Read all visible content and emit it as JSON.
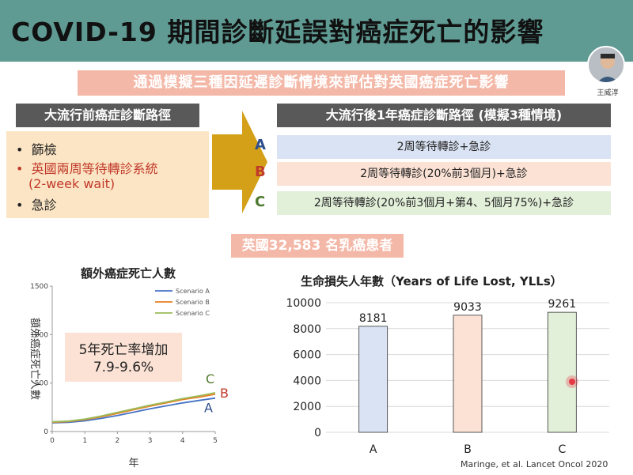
{
  "slide": {
    "title": "COVID-19 期間診斷延誤對癌症死亡的影響",
    "subtitle": "通過模擬三種因延遲診斷情境來評估對英國癌症死亡影響",
    "presenter_name": "王威淳",
    "citation": "Maringe, et al. Lancet Oncol 2020",
    "patients_label": "英國32,583 名乳癌患者"
  },
  "pre_pandemic": {
    "header": "大流行前癌症診斷路徑",
    "items": [
      {
        "bullet": "•",
        "text": "篩檢"
      },
      {
        "bullet": "•",
        "text": "英國兩周等待轉診系統"
      },
      {
        "bullet": "",
        "text": "(2-week wait)"
      },
      {
        "bullet": "•",
        "text": "急診"
      }
    ]
  },
  "post_pandemic": {
    "header": "大流行後1年癌症診斷路徑 (模擬3種情境)",
    "scenarios": [
      {
        "letter": "A",
        "text": "2周等待轉診+急診"
      },
      {
        "letter": "B",
        "text": "2周等待轉診(20%前3個月)+急診"
      },
      {
        "letter": "C",
        "text": "2周等待轉診(20%前3個月+第4、5個月75%)+急診"
      }
    ]
  },
  "colors": {
    "title_bar": "#5f9a93",
    "subtitle_bg": "#f4b8a8",
    "header_bg": "#595959",
    "pre_box": "#fce5c4",
    "arrow": "#d4a017",
    "scenario_A": "#dae3f3",
    "scenario_B": "#fbe2d5",
    "scenario_C": "#e2efd9",
    "letter_A": "#2e4f8c",
    "letter_B": "#c0392b",
    "letter_C": "#4e7a2c",
    "pointer": "#e63946"
  },
  "line_chart": {
    "heading": "額外癌症死亡人數",
    "mortality_label_1": "5年死亡率增加",
    "mortality_label_2": "7.9-9.6%",
    "chart_data": {
      "type": "line",
      "xlabel": "年",
      "ylabel": "額外癌症死亡人數",
      "xlim": [
        0,
        5
      ],
      "ylim": [
        0,
        1500
      ],
      "x_ticks": [
        "0",
        "1",
        "2",
        "3",
        "4",
        "5"
      ],
      "y_ticks": [
        "0",
        "500",
        "1000",
        "1500"
      ],
      "x": [
        0,
        0.5,
        1,
        1.5,
        2,
        2.5,
        3,
        3.5,
        4,
        4.5,
        5
      ],
      "series": [
        {
          "name": "Scenario A",
          "end_label": "A",
          "color": "#4472c4",
          "values": [
            90,
            95,
            110,
            135,
            165,
            200,
            235,
            265,
            295,
            320,
            345
          ]
        },
        {
          "name": "Scenario B",
          "end_label": "B",
          "color": "#e67e22",
          "values": [
            95,
            103,
            122,
            152,
            187,
            225,
            262,
            295,
            330,
            355,
            385
          ]
        },
        {
          "name": "Scenario C",
          "end_label": "C",
          "color": "#9bbb59",
          "values": [
            100,
            108,
            128,
            160,
            197,
            235,
            272,
            305,
            340,
            368,
            400
          ]
        }
      ]
    }
  },
  "bar_chart": {
    "heading": "生命損失人年數（Years of Life Lost, YLLs）",
    "chart_data": {
      "type": "bar",
      "categories": [
        "A",
        "B",
        "C"
      ],
      "values": [
        8181,
        9033,
        9261
      ],
      "bar_colors": [
        "#dae3f3",
        "#fbe2d5",
        "#e2efd9"
      ],
      "ylim": [
        0,
        10000
      ],
      "y_ticks": [
        "0",
        "2000",
        "4000",
        "6000",
        "8000",
        "10000"
      ],
      "grid": true
    }
  }
}
